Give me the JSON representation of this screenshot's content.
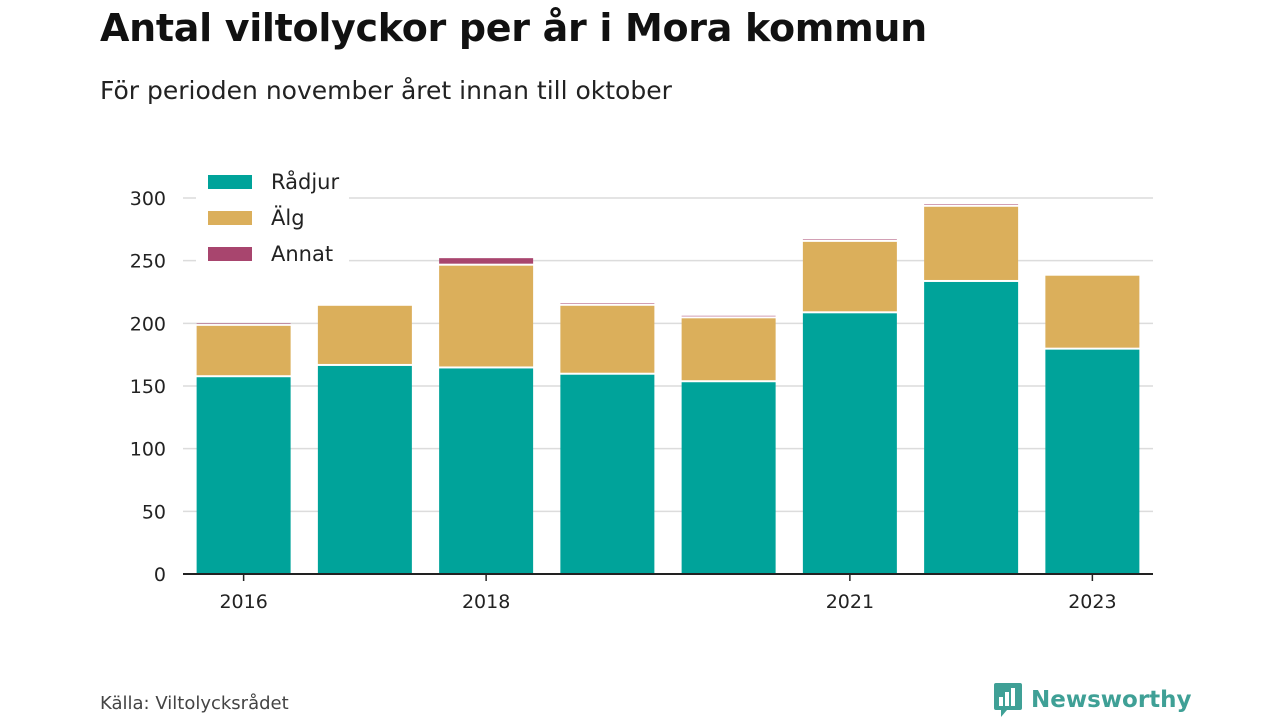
{
  "title": "Antal viltolyckor per år i Mora kommun",
  "subtitle": "För perioden november året innan till oktober",
  "source": "Källa: Viltolycksrådet",
  "brand": {
    "name": "Newsworthy",
    "icon": "newsworthy-logo-icon",
    "color": "#3fa096"
  },
  "chart_data": {
    "type": "bar",
    "stacked": true,
    "categories": [
      "2016",
      "2017",
      "2018",
      "2019",
      "2020",
      "2021",
      "2022",
      "2023"
    ],
    "x_tick_labels": [
      "2016",
      "",
      "2018",
      "",
      "",
      "2021",
      "",
      "2023"
    ],
    "series": [
      {
        "name": "Rådjur",
        "color": "#00a39a",
        "values": [
          157,
          166,
          164,
          159,
          153,
          208,
          233,
          179
        ]
      },
      {
        "name": "Älg",
        "color": "#dbaf5b",
        "values": [
          41,
          48,
          82,
          55,
          51,
          57,
          60,
          59
        ]
      },
      {
        "name": "Annat",
        "color": "#a8456e",
        "values": [
          2,
          0,
          6,
          2,
          2,
          2,
          2,
          0
        ]
      }
    ],
    "ylim": [
      0,
      300
    ],
    "yticks": [
      0,
      50,
      100,
      150,
      200,
      250,
      300
    ],
    "grid": true,
    "legend": "top-left"
  }
}
